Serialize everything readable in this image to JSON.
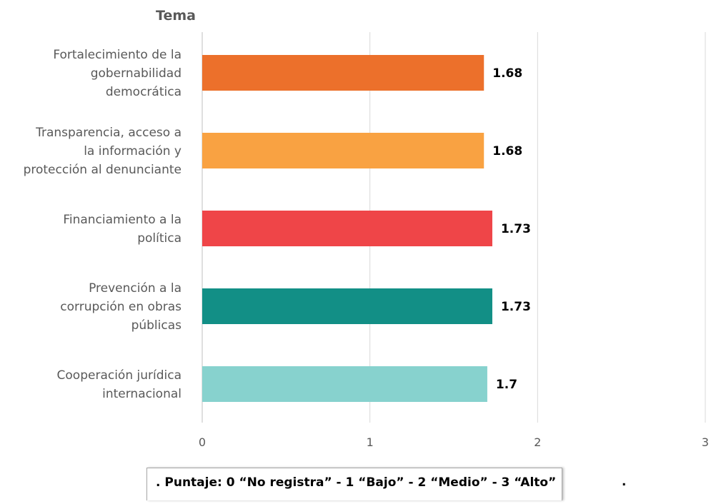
{
  "chart_data": {
    "type": "bar",
    "orientation": "horizontal",
    "axis_title": "Tema",
    "categories": [
      [
        "Fortalecimiento de la",
        "gobernabilidad",
        "democrática"
      ],
      [
        "Transparencia, acceso a",
        "la información y",
        "protección al denunciante"
      ],
      [
        "Financiamiento a la",
        "política"
      ],
      [
        "Prevención a la",
        "corrupción en obras",
        "públicas"
      ],
      [
        "Cooperación jurídica",
        "internacional"
      ]
    ],
    "values": [
      1.68,
      1.68,
      1.73,
      1.73,
      1.7
    ],
    "value_labels": [
      "1.68",
      "1.68",
      "1.73",
      "1.73",
      "1.7"
    ],
    "colors": [
      "#ec702b",
      "#f9a242",
      "#ef4548",
      "#128f86",
      "#87d2ce"
    ],
    "xlim": [
      0,
      3
    ],
    "xticks": [
      "0",
      "1",
      "2",
      "3"
    ],
    "grid": true
  },
  "footnote": {
    "text": ". Puntaje: 0 “No registra” - 1 “Bajo” - 2 “Medio” - 3 “Alto”",
    "suffix": "."
  }
}
